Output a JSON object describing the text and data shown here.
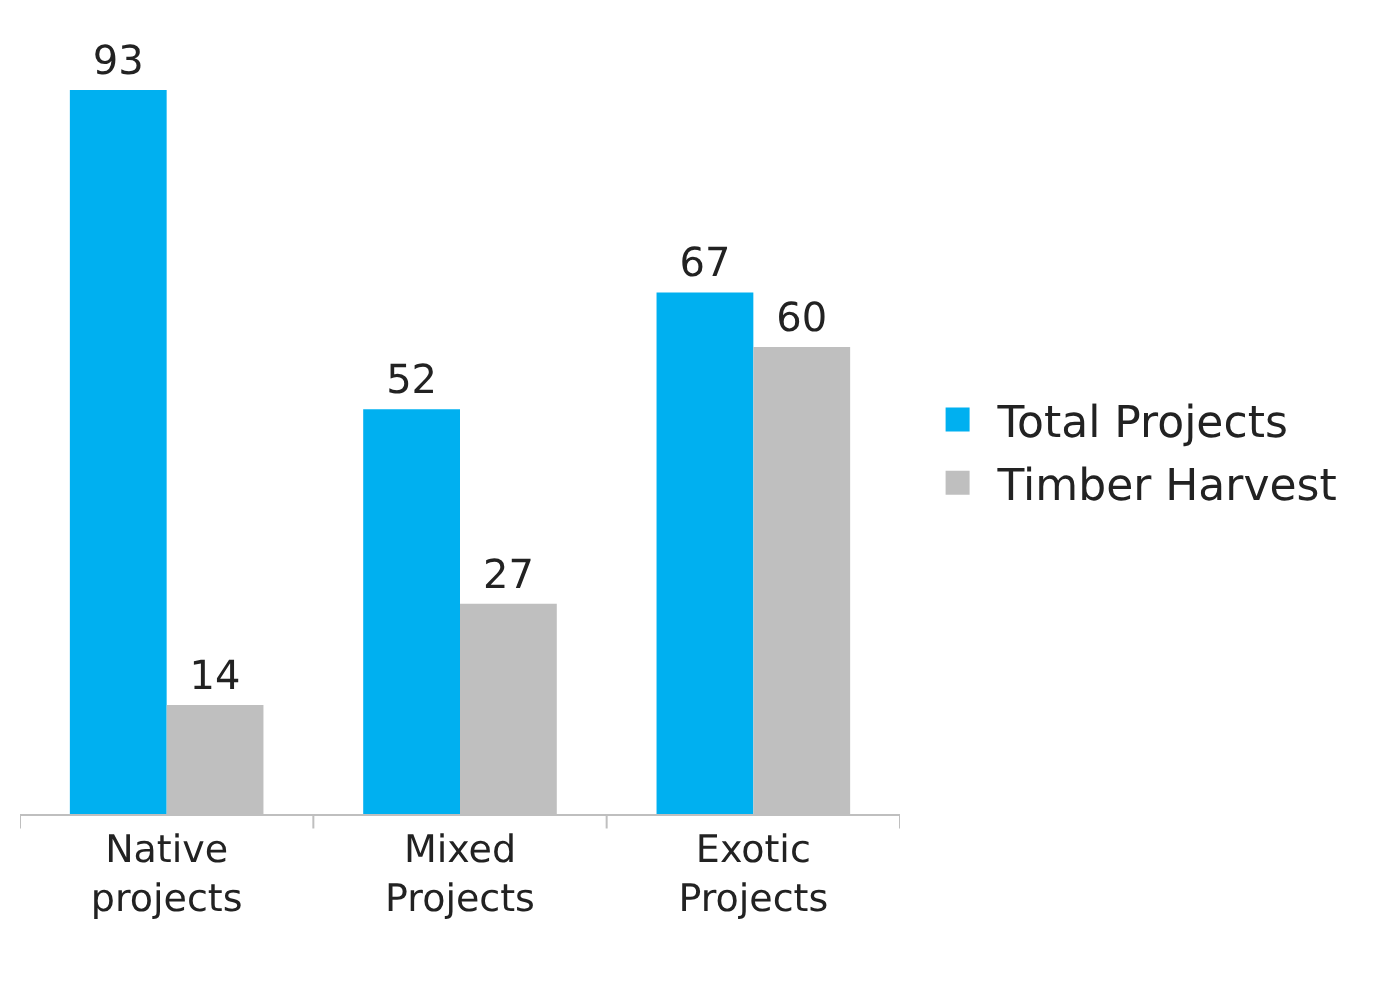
{
  "chart_data": {
    "type": "bar",
    "categories": [
      "Native projects",
      "Mixed Projects",
      "Exotic Projects"
    ],
    "series": [
      {
        "name": "Total Projects",
        "color": "#00b0f0",
        "values": [
          93,
          52,
          67
        ]
      },
      {
        "name": "Timber Harvest",
        "color": "#bfbfbf",
        "values": [
          14,
          27,
          60
        ]
      }
    ],
    "data_labels": true,
    "legend": "right",
    "grid": false
  }
}
